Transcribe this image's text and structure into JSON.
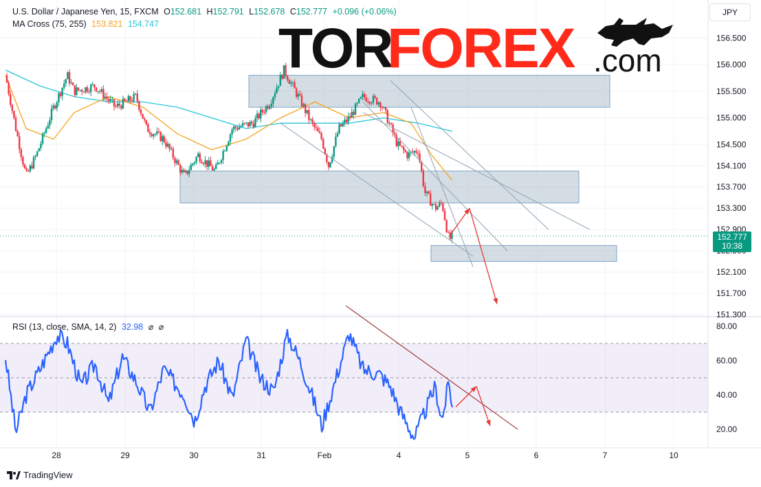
{
  "header": {
    "symbol": "U.S. Dollar / Japanese Yen, 15, FXCM",
    "o_label": "O",
    "o_value": "152.681",
    "h_label": "H",
    "h_value": "152.791",
    "l_label": "L",
    "l_value": "152.678",
    "c_label": "C",
    "c_value": "152.777",
    "change": "+0.096 (+0.06%)",
    "ma_label": "MA Cross (75, 255)",
    "ma75_value": "153.821",
    "ma255_value": "154.747",
    "rsi_label": "RSI (13, close, SMA, 14, 2)",
    "rsi_value": "32.98",
    "rsi_extra1": "⌀",
    "rsi_extra2": "⌀"
  },
  "currency_button": "JPY",
  "price_tag": {
    "price": "152.777",
    "countdown": "10:38"
  },
  "logo": {
    "part1": "TOR",
    "part2": "FOREX",
    "part3": ".com"
  },
  "branding": {
    "tradingview": "TradingView"
  },
  "colors": {
    "up": "#089981",
    "down": "#f23645",
    "ma75": "#f7a21b",
    "ma255": "#26c6da",
    "rsi": "#2962ff",
    "zone": "#9fb3c0",
    "arrow": "#e53935",
    "trend": "#8b1a1a"
  },
  "chart_data": [
    {
      "type": "candlestick",
      "title": "U.S. Dollar / Japanese Yen, 15, FXCM",
      "price_ticks": [
        "156.500",
        "156.000",
        "155.500",
        "155.000",
        "154.500",
        "154.100",
        "153.700",
        "153.300",
        "152.900",
        "152.500",
        "152.100",
        "151.700",
        "151.300"
      ],
      "x_ticks": [
        "28",
        "29",
        "30",
        "31",
        "Feb",
        "4",
        "5",
        "6",
        "7",
        "10"
      ],
      "ylim": [
        151.3,
        156.7
      ],
      "last_price": 152.777,
      "price_path": [
        {
          "t": 0.0,
          "p": 155.8
        },
        {
          "t": 0.15,
          "p": 154.8
        },
        {
          "t": 0.3,
          "p": 153.9
        },
        {
          "t": 0.45,
          "p": 154.3
        },
        {
          "t": 0.7,
          "p": 155.2
        },
        {
          "t": 0.9,
          "p": 155.8
        },
        {
          "t": 1.0,
          "p": 155.5
        },
        {
          "t": 1.3,
          "p": 155.6
        },
        {
          "t": 1.6,
          "p": 155.2
        },
        {
          "t": 1.9,
          "p": 155.4
        },
        {
          "t": 2.05,
          "p": 154.8
        },
        {
          "t": 2.3,
          "p": 154.6
        },
        {
          "t": 2.6,
          "p": 153.9
        },
        {
          "t": 2.8,
          "p": 154.3
        },
        {
          "t": 3.05,
          "p": 154.0
        },
        {
          "t": 3.3,
          "p": 154.8
        },
        {
          "t": 3.6,
          "p": 154.9
        },
        {
          "t": 3.85,
          "p": 155.3
        },
        {
          "t": 4.05,
          "p": 155.9
        },
        {
          "t": 4.3,
          "p": 155.3
        },
        {
          "t": 4.45,
          "p": 154.9
        },
        {
          "t": 4.6,
          "p": 154.6
        },
        {
          "t": 4.7,
          "p": 154.1
        },
        {
          "t": 4.85,
          "p": 154.8
        },
        {
          "t": 5.0,
          "p": 155.0
        },
        {
          "t": 5.2,
          "p": 155.4
        },
        {
          "t": 5.45,
          "p": 155.3
        },
        {
          "t": 5.55,
          "p": 155.0
        },
        {
          "t": 5.7,
          "p": 154.5
        },
        {
          "t": 5.85,
          "p": 154.3
        },
        {
          "t": 6.0,
          "p": 154.4
        },
        {
          "t": 6.1,
          "p": 153.6
        },
        {
          "t": 6.25,
          "p": 153.3
        },
        {
          "t": 6.35,
          "p": 153.4
        },
        {
          "t": 6.45,
          "p": 152.7
        },
        {
          "t": 6.5,
          "p": 152.777
        }
      ],
      "ma75_path": [
        {
          "t": 0.0,
          "p": 155.8
        },
        {
          "t": 0.3,
          "p": 154.8
        },
        {
          "t": 0.7,
          "p": 154.6
        },
        {
          "t": 1.0,
          "p": 155.1
        },
        {
          "t": 1.5,
          "p": 155.4
        },
        {
          "t": 2.0,
          "p": 155.2
        },
        {
          "t": 2.5,
          "p": 154.7
        },
        {
          "t": 3.0,
          "p": 154.4
        },
        {
          "t": 3.5,
          "p": 154.6
        },
        {
          "t": 4.0,
          "p": 155.0
        },
        {
          "t": 4.5,
          "p": 155.3
        },
        {
          "t": 5.0,
          "p": 155.0
        },
        {
          "t": 5.5,
          "p": 155.1
        },
        {
          "t": 5.9,
          "p": 154.9
        },
        {
          "t": 6.2,
          "p": 154.3
        },
        {
          "t": 6.5,
          "p": 153.821
        }
      ],
      "ma255_path": [
        {
          "t": 0.0,
          "p": 155.9
        },
        {
          "t": 0.5,
          "p": 155.6
        },
        {
          "t": 1.0,
          "p": 155.4
        },
        {
          "t": 1.5,
          "p": 155.3
        },
        {
          "t": 2.0,
          "p": 155.3
        },
        {
          "t": 2.5,
          "p": 155.2
        },
        {
          "t": 3.0,
          "p": 155.0
        },
        {
          "t": 3.5,
          "p": 154.8
        },
        {
          "t": 4.0,
          "p": 154.9
        },
        {
          "t": 4.5,
          "p": 154.9
        },
        {
          "t": 5.0,
          "p": 154.9
        },
        {
          "t": 5.5,
          "p": 155.0
        },
        {
          "t": 6.0,
          "p": 154.9
        },
        {
          "t": 6.5,
          "p": 154.747
        }
      ],
      "zones": [
        {
          "t1": 3.55,
          "t2": 8.8,
          "p1": 155.2,
          "p2": 155.8
        },
        {
          "t1": 2.55,
          "t2": 8.35,
          "p1": 153.4,
          "p2": 154.0
        },
        {
          "t1": 6.2,
          "t2": 8.9,
          "p1": 152.3,
          "p2": 152.6
        }
      ],
      "channel_lines": [
        {
          "t1": 4.0,
          "p1": 154.9,
          "t2": 6.8,
          "p2": 152.4
        },
        {
          "t1": 5.2,
          "p1": 155.3,
          "t2": 7.3,
          "p2": 152.5
        },
        {
          "t1": 5.6,
          "p1": 155.7,
          "t2": 7.9,
          "p2": 152.9
        },
        {
          "t1": 5.2,
          "p1": 155.1,
          "t2": 8.5,
          "p2": 152.9
        },
        {
          "t1": 5.9,
          "p1": 155.2,
          "t2": 6.8,
          "p2": 152.2
        }
      ],
      "arrows": [
        {
          "t1": 6.47,
          "p1": 152.8,
          "t2": 6.75,
          "p2": 153.3
        },
        {
          "t1": 6.75,
          "p1": 153.3,
          "t2": 7.15,
          "p2": 151.5
        }
      ]
    },
    {
      "type": "line",
      "title": "RSI (13, close, SMA, 14, 2)",
      "ylim": [
        10,
        82
      ],
      "y_ticks": [
        "80.00",
        "60.00",
        "40.00",
        "20.00"
      ],
      "levels": [
        70,
        50,
        30
      ],
      "last_value": 32.98,
      "rsi_path": [
        {
          "t": 0.0,
          "p": 62
        },
        {
          "t": 0.15,
          "p": 18
        },
        {
          "t": 0.3,
          "p": 40
        },
        {
          "t": 0.5,
          "p": 55
        },
        {
          "t": 0.75,
          "p": 75
        },
        {
          "t": 0.9,
          "p": 70
        },
        {
          "t": 1.1,
          "p": 45
        },
        {
          "t": 1.3,
          "p": 58
        },
        {
          "t": 1.5,
          "p": 35
        },
        {
          "t": 1.7,
          "p": 62
        },
        {
          "t": 1.9,
          "p": 48
        },
        {
          "t": 2.1,
          "p": 30
        },
        {
          "t": 2.3,
          "p": 55
        },
        {
          "t": 2.6,
          "p": 40
        },
        {
          "t": 2.75,
          "p": 25
        },
        {
          "t": 2.9,
          "p": 45
        },
        {
          "t": 3.1,
          "p": 60
        },
        {
          "t": 3.3,
          "p": 38
        },
        {
          "t": 3.5,
          "p": 72
        },
        {
          "t": 3.7,
          "p": 50
        },
        {
          "t": 3.9,
          "p": 42
        },
        {
          "t": 4.1,
          "p": 76
        },
        {
          "t": 4.3,
          "p": 58
        },
        {
          "t": 4.5,
          "p": 35
        },
        {
          "t": 4.6,
          "p": 22
        },
        {
          "t": 4.75,
          "p": 42
        },
        {
          "t": 5.0,
          "p": 76
        },
        {
          "t": 5.2,
          "p": 55
        },
        {
          "t": 5.45,
          "p": 52
        },
        {
          "t": 5.6,
          "p": 45
        },
        {
          "t": 5.75,
          "p": 30
        },
        {
          "t": 5.95,
          "p": 15
        },
        {
          "t": 6.1,
          "p": 30
        },
        {
          "t": 6.25,
          "p": 45
        },
        {
          "t": 6.35,
          "p": 25
        },
        {
          "t": 6.45,
          "p": 48
        },
        {
          "t": 6.5,
          "p": 32.98
        }
      ],
      "trendline": {
        "t1": 4.45,
        "p1": 80,
        "t2": 7.45,
        "p2": 28
      },
      "arrows": [
        {
          "t1": 6.55,
          "p1": 33,
          "t2": 6.85,
          "p2": 45
        },
        {
          "t1": 6.85,
          "p1": 45,
          "t2": 7.05,
          "p2": 22
        }
      ]
    }
  ]
}
